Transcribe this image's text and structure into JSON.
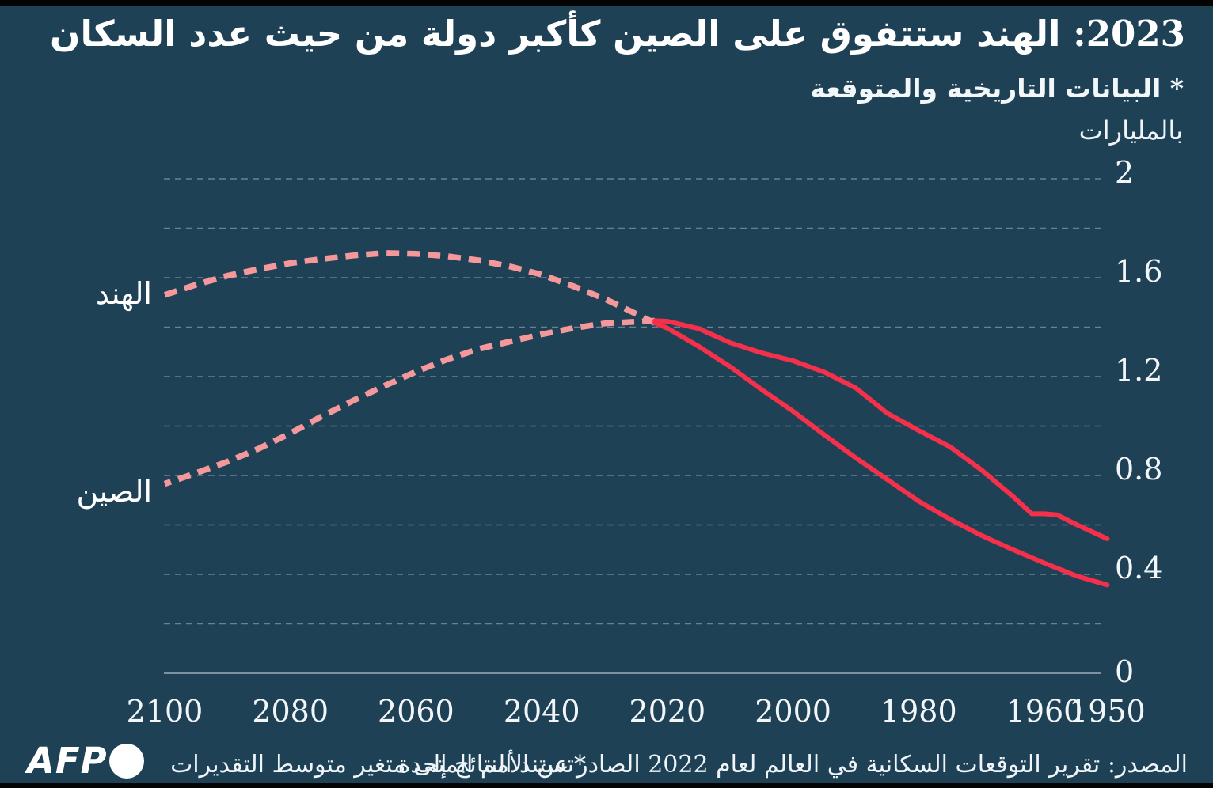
{
  "header": {
    "title": "2023: الهند ستتفوق على الصين كأكبر دولة من حيث عدد السكان",
    "subtitle": "* البيانات التاريخية والمتوقعة",
    "units_label": "بالمليارات"
  },
  "footer": {
    "logo_text": "AFP",
    "note": "*تستند النتائج إلى متغير متوسط التقديرات",
    "source": "المصدر: تقرير التوقعات السكانية في العالم لعام 2022 الصادر عن الأمم المتحدة"
  },
  "colors": {
    "background": "#1e4156",
    "top_bottom_bars": "#040404",
    "history_line": "#f4304b",
    "projection_line": "#f4989b",
    "gridline": "#cfdde6",
    "text": "#ffffff"
  },
  "chart_data": {
    "type": "line",
    "title": "2023: الهند ستتفوق على الصين كأكبر دولة من حيث عدد السكان",
    "subtitle": "* البيانات التاريخية والمتوقعة",
    "xlabel": "",
    "ylabel": "بالمليارات",
    "x_axis": {
      "range": [
        1950,
        2100
      ],
      "reversed": true,
      "tick_values": [
        2100,
        2080,
        2060,
        2040,
        2020,
        2000,
        1980,
        1960,
        1950
      ],
      "tick_labels": [
        "2100",
        "2080",
        "2060",
        "2040",
        "2020",
        "2000",
        "1980",
        "1960",
        "1950"
      ]
    },
    "y_axis": {
      "range": [
        0,
        2
      ],
      "side": "right",
      "tick_values": [
        2,
        1.6,
        1.2,
        0.8,
        0.4,
        0
      ],
      "tick_labels": [
        "2",
        "1.6",
        "1.2",
        "0.8",
        "0.4",
        "0"
      ],
      "grid_step": 0.2,
      "grid": true
    },
    "series": [
      {
        "name_ar": "الهند",
        "name_en": "india",
        "history": [
          [
            1950,
            0.357
          ],
          [
            1955,
            0.395
          ],
          [
            1960,
            0.446
          ],
          [
            1965,
            0.5
          ],
          [
            1970,
            0.557
          ],
          [
            1975,
            0.623
          ],
          [
            1980,
            0.696
          ],
          [
            1985,
            0.784
          ],
          [
            1990,
            0.871
          ],
          [
            1995,
            0.964
          ],
          [
            2000,
            1.06
          ],
          [
            2005,
            1.148
          ],
          [
            2010,
            1.24
          ],
          [
            2015,
            1.322
          ],
          [
            2020,
            1.396
          ],
          [
            2022,
            1.417
          ]
        ],
        "projection": [
          [
            2022,
            1.417
          ],
          [
            2025,
            1.454
          ],
          [
            2030,
            1.515
          ],
          [
            2035,
            1.566
          ],
          [
            2040,
            1.612
          ],
          [
            2045,
            1.645
          ],
          [
            2050,
            1.67
          ],
          [
            2055,
            1.687
          ],
          [
            2060,
            1.697
          ],
          [
            2065,
            1.7
          ],
          [
            2070,
            1.69
          ],
          [
            2075,
            1.676
          ],
          [
            2080,
            1.659
          ],
          [
            2085,
            1.635
          ],
          [
            2090,
            1.608
          ],
          [
            2095,
            1.572
          ],
          [
            2100,
            1.53
          ]
        ]
      },
      {
        "name_ar": "الصين",
        "name_en": "china",
        "history": [
          [
            1950,
            0.544
          ],
          [
            1955,
            0.603
          ],
          [
            1958,
            0.641
          ],
          [
            1960,
            0.645
          ],
          [
            1962,
            0.645
          ],
          [
            1965,
            0.715
          ],
          [
            1970,
            0.822
          ],
          [
            1975,
            0.916
          ],
          [
            1980,
            0.982
          ],
          [
            1985,
            1.052
          ],
          [
            1990,
            1.154
          ],
          [
            1995,
            1.218
          ],
          [
            2000,
            1.264
          ],
          [
            2005,
            1.296
          ],
          [
            2010,
            1.337
          ],
          [
            2015,
            1.394
          ],
          [
            2020,
            1.424
          ],
          [
            2022,
            1.426
          ]
        ],
        "projection": [
          [
            2022,
            1.426
          ],
          [
            2025,
            1.422
          ],
          [
            2030,
            1.415
          ],
          [
            2035,
            1.396
          ],
          [
            2040,
            1.371
          ],
          [
            2045,
            1.342
          ],
          [
            2050,
            1.312
          ],
          [
            2055,
            1.27
          ],
          [
            2060,
            1.22
          ],
          [
            2065,
            1.163
          ],
          [
            2070,
            1.103
          ],
          [
            2075,
            1.039
          ],
          [
            2080,
            0.971
          ],
          [
            2085,
            0.909
          ],
          [
            2090,
            0.856
          ],
          [
            2095,
            0.81
          ],
          [
            2100,
            0.766
          ]
        ]
      }
    ]
  }
}
